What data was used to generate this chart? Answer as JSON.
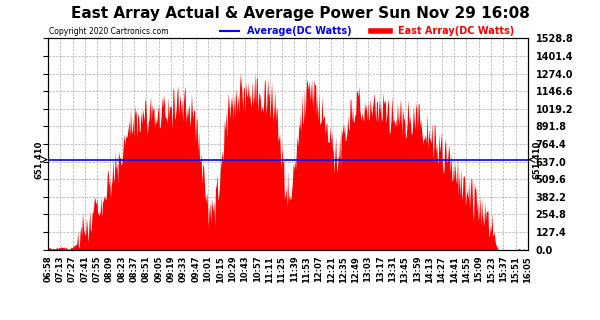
{
  "title": "East Array Actual & Average Power Sun Nov 29 16:08",
  "copyright": "Copyright 2020 Cartronics.com",
  "average_value": 651.41,
  "y_max": 1528.8,
  "y_min": 0.0,
  "y_ticks": [
    0.0,
    127.4,
    254.8,
    382.2,
    509.6,
    637.0,
    764.4,
    891.8,
    1019.2,
    1146.6,
    1274.0,
    1401.4,
    1528.8
  ],
  "legend_average_label": "Average(DC Watts)",
  "legend_east_label": "East Array(DC Watts)",
  "avg_color": "blue",
  "east_color": "red",
  "background_color": "#ffffff",
  "grid_color": "#999999",
  "title_fontsize": 11,
  "x_labels": [
    "06:58",
    "07:13",
    "07:27",
    "07:41",
    "07:55",
    "08:09",
    "08:23",
    "08:37",
    "08:51",
    "09:05",
    "09:19",
    "09:33",
    "09:47",
    "10:01",
    "10:15",
    "10:29",
    "10:43",
    "10:57",
    "11:11",
    "11:25",
    "11:39",
    "11:53",
    "12:07",
    "12:21",
    "12:35",
    "12:49",
    "13:03",
    "13:17",
    "13:31",
    "13:45",
    "13:59",
    "14:13",
    "14:27",
    "14:41",
    "14:55",
    "15:09",
    "15:23",
    "15:37",
    "15:51",
    "16:05"
  ],
  "num_points": 600
}
